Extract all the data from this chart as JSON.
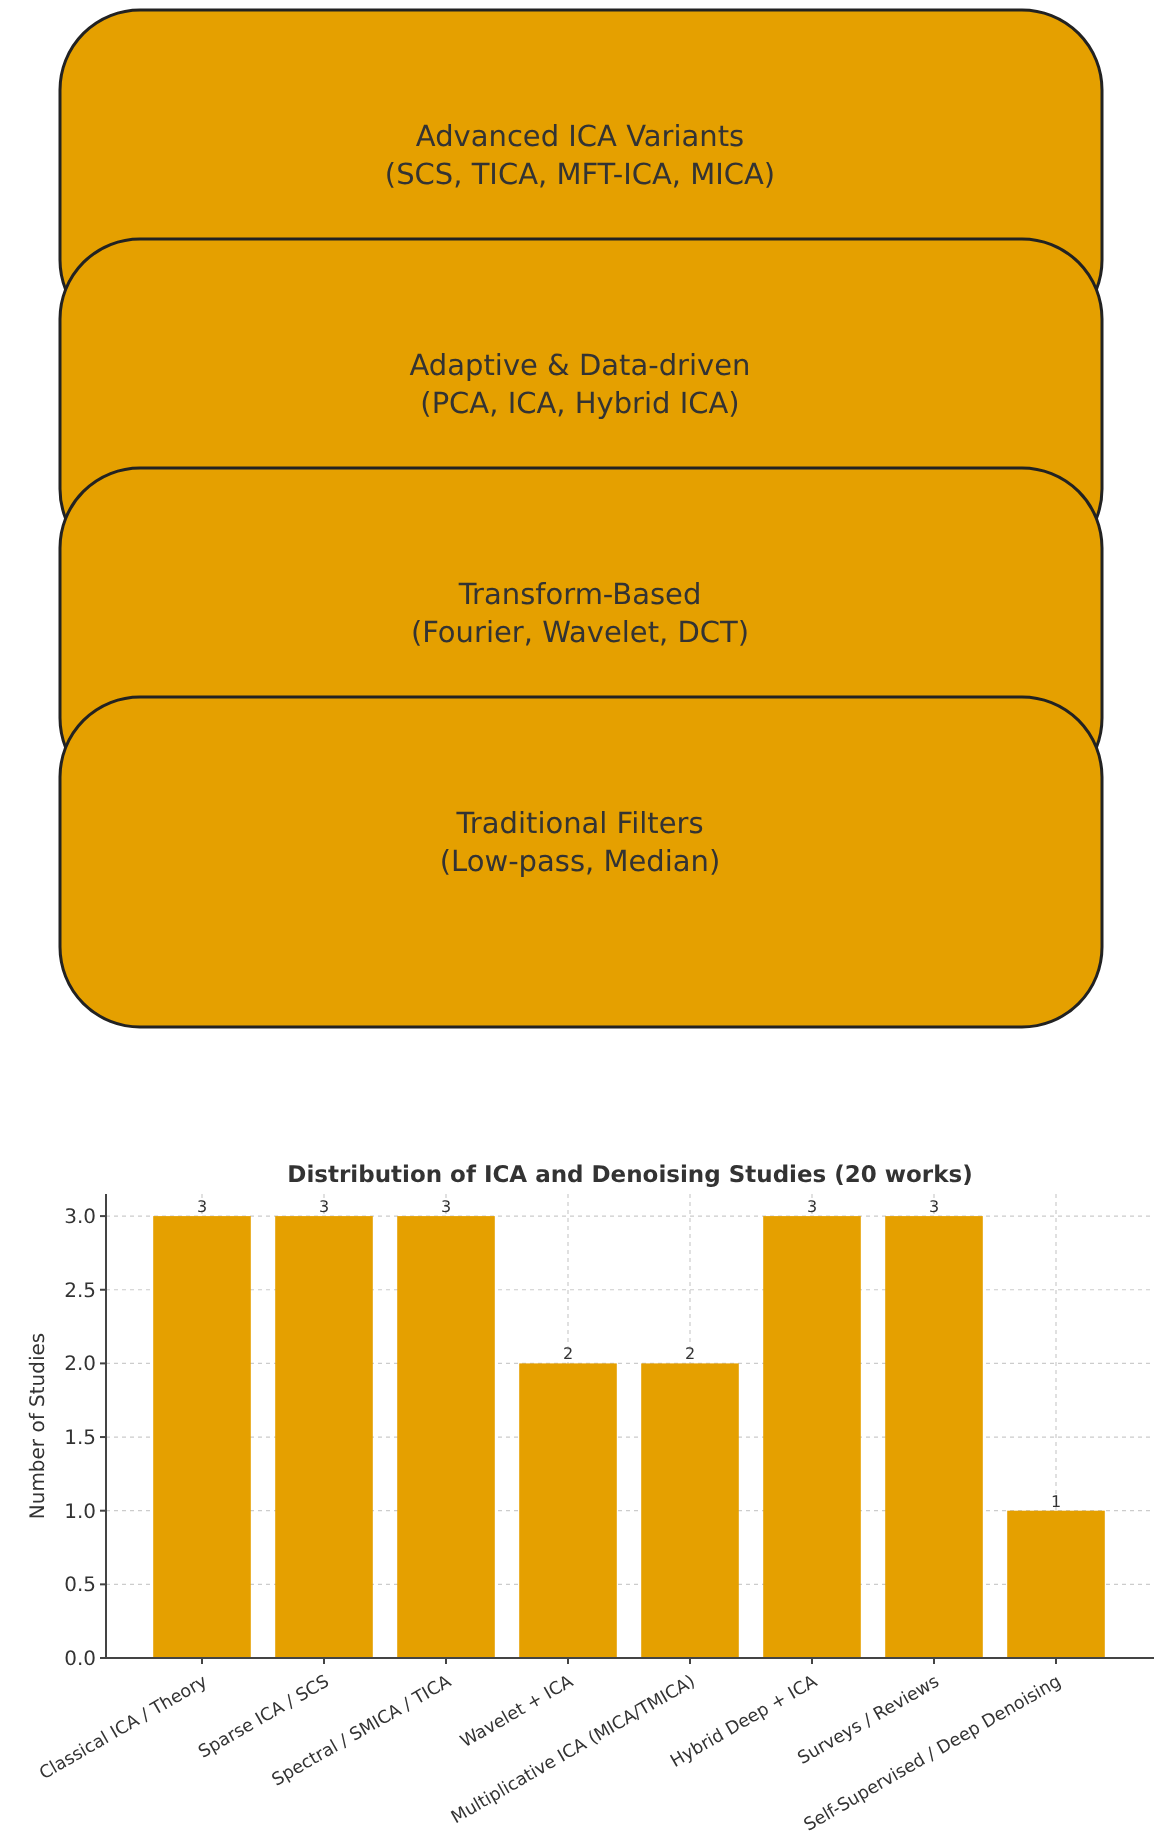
{
  "chart_data": [
    {
      "type": "other",
      "color": "#e5a000",
      "annotations": [
        "Advanced ICA Variants\n(SCS, TICA, MFT-ICA, MICA)",
        "Adaptive & Data-driven\n(PCA, ICA, Hybrid ICA)",
        "Transform-Based\n(Fourier, Wavelet, DCT)",
        "Traditional Filters\n(Low-pass, Median)"
      ]
    },
    {
      "type": "bar",
      "title": "Distribution of ICA and Denoising Studies (20 works)",
      "ylabel": "Number of Studies",
      "categories": [
        "Classical ICA / Theory",
        "Sparse ICA / SCS",
        "Spectral / SMICA / TICA",
        "Wavelet + ICA",
        "Multiplicative ICA (MICA/TMICA)",
        "Hybrid Deep + ICA",
        "Surveys / Reviews",
        "Self-Supervised / Deep Denoising"
      ],
      "values": [
        3,
        3,
        3,
        2,
        2,
        3,
        3,
        1
      ],
      "color": "#e5a000",
      "ylim": [
        0,
        3.15
      ],
      "yticks": [
        {
          "value": 0,
          "label": "0.0"
        },
        {
          "value": 0.5,
          "label": "0.5"
        },
        {
          "value": 1,
          "label": "1.0"
        },
        {
          "value": 1.5,
          "label": "1.5"
        },
        {
          "value": 2,
          "label": "2.0"
        },
        {
          "value": 2.5,
          "label": "2.5"
        },
        {
          "value": 3,
          "label": "3.0"
        }
      ],
      "grid": true,
      "data_labels": true
    }
  ]
}
